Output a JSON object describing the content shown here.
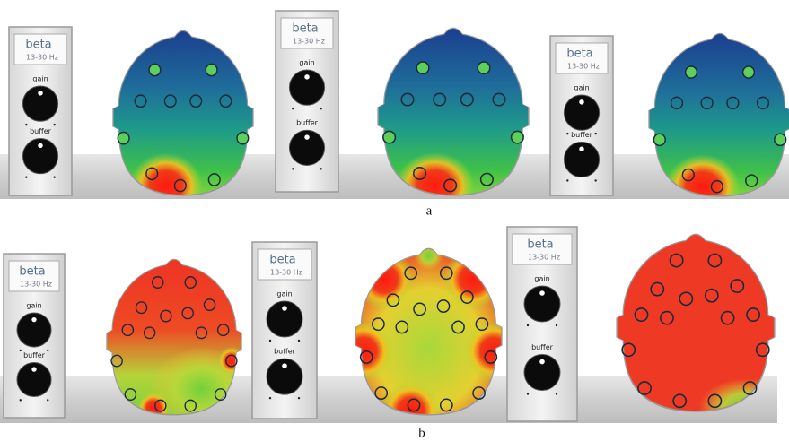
{
  "rows": [
    {
      "label": "a",
      "panels": [
        {
          "band": "beta",
          "range": "13-30 Hz",
          "gain": "gain",
          "buffer": "buffer"
        },
        {
          "band": "beta",
          "range": "13-30 Hz",
          "gain": "gain",
          "buffer": "buffer"
        },
        {
          "band": "beta",
          "range": "13-30 Hz",
          "gain": "gain",
          "buffer": "buffer"
        }
      ]
    },
    {
      "label": "b",
      "panels": [
        {
          "band": "beta",
          "range": "13-30 Hz",
          "gain": "gain",
          "buffer": "buffer"
        },
        {
          "band": "beta",
          "range": "13-30 Hz",
          "gain": "gain",
          "buffer": "buffer"
        },
        {
          "band": "beta",
          "range": "13-30 Hz",
          "gain": "gain",
          "buffer": "buffer"
        }
      ]
    }
  ]
}
